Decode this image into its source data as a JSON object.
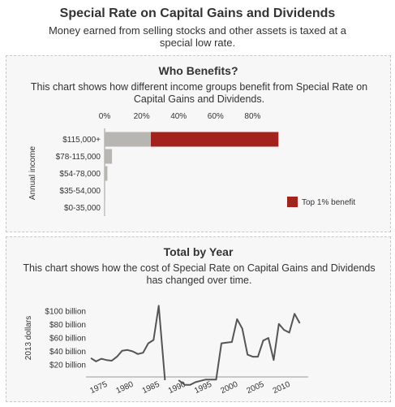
{
  "header": {
    "title": "Special Rate on Capital Gains and Dividends",
    "subtitle": "Money earned from selling stocks and other assets is taxed at a special low rate."
  },
  "who_benefits": {
    "title": "Who Benefits?",
    "description": "This chart shows how different income groups benefit from Special Rate on Capital Gains and Dividends."
  },
  "total_by_year": {
    "title": "Total by Year",
    "description": "This chart shows how the cost of Special Rate on Capital Gains and Dividends has changed over time."
  },
  "colors": {
    "gray_bar": "#b7b6b3",
    "top1": "#a3221e",
    "line": "#555555"
  },
  "chart_data": [
    {
      "type": "bar",
      "orientation": "horizontal",
      "stacked": true,
      "categories": [
        "$115,000+",
        "$78-115,000",
        "$54-78,000",
        "$35-54,000",
        "$0-35,000"
      ],
      "series": [
        {
          "values": [
            25,
            4,
            1.5,
            0.3,
            0.2
          ]
        },
        {
          "name": "Top 1% benefit",
          "values": [
            69,
            0,
            0,
            0,
            0
          ]
        }
      ],
      "xlabel": "",
      "ylabel": "Annual income",
      "x_ticks": [
        "0%",
        "20%",
        "40%",
        "60%",
        "80%"
      ],
      "xlim": [
        0,
        100
      ],
      "legend": "bottom-right"
    },
    {
      "type": "line",
      "x": [
        1973,
        1974,
        1975,
        1976,
        1977,
        1978,
        1979,
        1980,
        1981,
        1982,
        1983,
        1984,
        1985,
        1986,
        1987,
        1988,
        1989,
        1990,
        1991,
        1992,
        1993,
        1994,
        1995,
        1996,
        1997,
        1998,
        1999,
        2000,
        2001,
        2002,
        2003,
        2004,
        2005,
        2006,
        2007,
        2008,
        2009,
        2010,
        2011,
        2012,
        2013,
        2014
      ],
      "y": [
        30,
        25,
        29,
        27,
        26,
        32,
        41,
        42,
        40,
        36,
        38,
        52,
        57,
        108,
        null,
        null,
        null,
        null,
        -10,
        -10,
        -6,
        -4,
        -2,
        -2,
        -2,
        52,
        53,
        54,
        88,
        74,
        35,
        32,
        32,
        56,
        60,
        27,
        81,
        72,
        68,
        96,
        82,
        null
      ],
      "ylabel": "2013 dollars",
      "y_ticks": [
        "$20 billion",
        "$40 billion",
        "$60 billion",
        "$80 billion",
        "$100 billion"
      ],
      "x_ticks": [
        "1975",
        "1980",
        "1985",
        "1990",
        "1995",
        "2000",
        "2005",
        "2010"
      ],
      "grid": false
    }
  ]
}
